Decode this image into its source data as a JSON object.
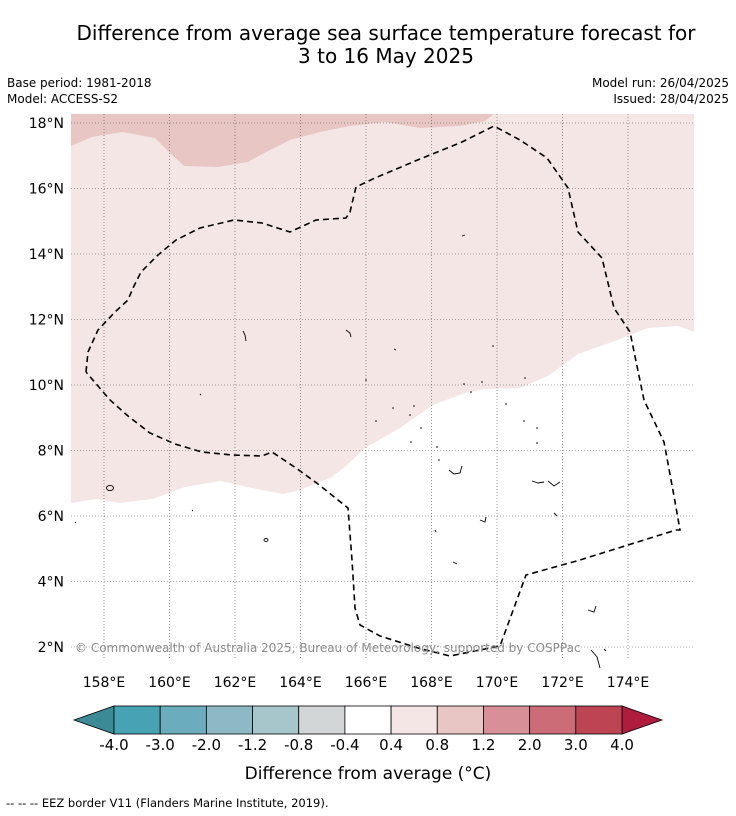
{
  "title_line1": "Difference from average sea surface temperature forecast for",
  "title_line2": "3 to 16 May 2025",
  "meta": {
    "base_period": "Base period: 1981-2018",
    "model": "Model: ACCESS-S2",
    "model_run": "Model run: 26/04/2025",
    "issued": "Issued: 28/04/2025"
  },
  "map": {
    "lon_ticks": [
      "158°E",
      "160°E",
      "162°E",
      "164°E",
      "166°E",
      "168°E",
      "170°E",
      "172°E",
      "174°E"
    ],
    "lat_ticks": [
      "18°N",
      "16°N",
      "14°N",
      "12°N",
      "10°N",
      "8°N",
      "6°N",
      "4°N",
      "2°N"
    ],
    "lon_values": [
      158,
      160,
      162,
      164,
      166,
      168,
      170,
      172,
      174
    ],
    "lat_values": [
      18,
      16,
      14,
      12,
      10,
      8,
      6,
      4,
      2
    ],
    "lon_range": [
      157,
      176
    ],
    "lat_range": [
      1.5,
      18.3
    ],
    "grid": true,
    "copyright": "© Commonwealth of Australia 2025, Bureau of Meteorology; supported by COSPPac",
    "region_colors": {
      "anomaly_0.8_to_1.2": "#e8c6c3",
      "anomaly_0.4_to_0.8": "#f3e6e4",
      "anomaly_-0.4_to_0.4": "#ffffff"
    },
    "eez_border_style": "dashed black"
  },
  "colorbar": {
    "labels": [
      "-4.0",
      "-3.0",
      "-2.0",
      "-1.2",
      "-0.8",
      "-0.4",
      "0.4",
      "0.8",
      "1.2",
      "2.0",
      "3.0",
      "4.0"
    ],
    "colors": [
      "#47a2b3",
      "#6badbc",
      "#8cb9c4",
      "#a7c6cb",
      "#d2d6d6",
      "#ffffff",
      "#f3e6e4",
      "#e8c6c3",
      "#d98f97",
      "#cb6c77",
      "#bd4453"
    ],
    "extend_low_color": "#3b8b96",
    "extend_high_color": "#b01c3e",
    "title": "Difference from average (°C)"
  },
  "footer": "--  --  -- EEZ border V11 (Flanders Marine Institute, 2019)."
}
